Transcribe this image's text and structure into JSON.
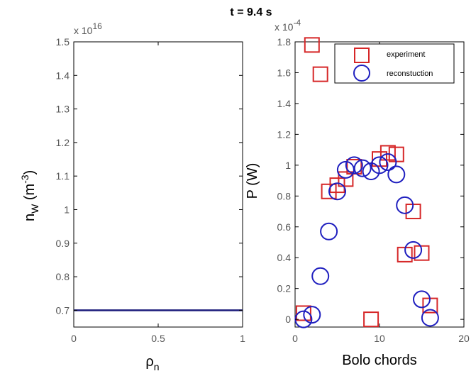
{
  "title": "t = 9.4 s",
  "colors": {
    "experiment": "#d62728",
    "reconstruction": "#1f1fbf",
    "line": "#1a1a7a"
  },
  "chart_data": [
    {
      "type": "line",
      "xlabel": "ρ",
      "xlabel_sub": "n",
      "ylabel": "n",
      "ylabel_sub": "W",
      "ylabel_unit_open": " (m",
      "ylabel_unit_exp": "-3",
      "ylabel_unit_close": ")",
      "xlim": [
        0,
        1
      ],
      "ylim": [
        0.65,
        1.5
      ],
      "xticks": [
        "0",
        "0.5",
        "1"
      ],
      "yticks": [
        "0.7",
        "0.8",
        "0.9",
        "1",
        "1.1",
        "1.2",
        "1.3",
        "1.4",
        "1.5"
      ],
      "ymultiplier_base": "x 10",
      "ymultiplier_exp": "16",
      "grid": false,
      "series": [
        {
          "x": [
            0,
            1
          ],
          "y": [
            0.7,
            0.7
          ]
        }
      ]
    },
    {
      "type": "scatter",
      "xlabel": "Bolo chords",
      "ylabel": "P (W)",
      "xlim": [
        0,
        20
      ],
      "ylim": [
        -0.05,
        1.8
      ],
      "xticks": [
        "0",
        "10",
        "20"
      ],
      "yticks": [
        "0",
        "0.2",
        "0.4",
        "0.6",
        "0.8",
        "1",
        "1.2",
        "1.4",
        "1.6",
        "1.8"
      ],
      "ymultiplier_base": "x 10",
      "ymultiplier_exp": "-4",
      "grid": false,
      "legend_position": "top-right",
      "series": [
        {
          "name": "experiment",
          "marker": "square",
          "x": [
            1,
            2,
            3,
            4,
            5,
            6,
            7,
            9,
            10,
            11,
            12,
            13,
            14,
            15,
            16
          ],
          "y": [
            0.04,
            1.78,
            1.59,
            0.83,
            0.87,
            0.91,
            0.99,
            0.0,
            1.04,
            1.08,
            1.07,
            0.42,
            0.7,
            0.43,
            0.09
          ]
        },
        {
          "name": "reconstuction",
          "marker": "circle",
          "x": [
            1,
            2,
            3,
            4,
            5,
            6,
            7,
            8,
            9,
            10,
            11,
            12,
            13,
            14,
            15,
            16
          ],
          "y": [
            0.0,
            0.03,
            0.28,
            0.57,
            0.83,
            0.97,
            1.0,
            0.98,
            0.96,
            1.0,
            1.02,
            0.94,
            0.74,
            0.45,
            0.13,
            0.01
          ]
        }
      ]
    }
  ]
}
